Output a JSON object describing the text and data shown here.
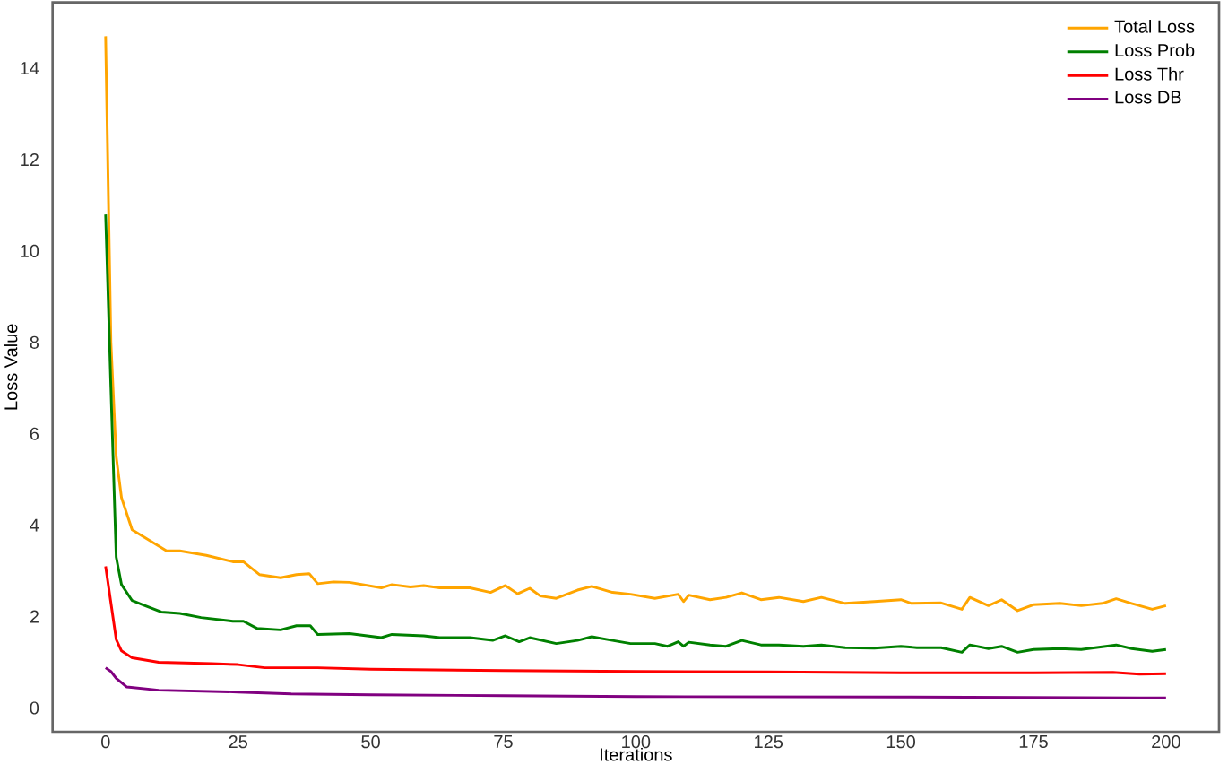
{
  "chart_data": {
    "type": "line",
    "xlabel": "Iterations",
    "ylabel": "Loss Value",
    "xlim": [
      -10,
      210
    ],
    "ylim": [
      -0.52,
      15.44
    ],
    "xticks": [
      0,
      25,
      50,
      75,
      100,
      125,
      150,
      175,
      200
    ],
    "yticks": [
      0,
      2,
      4,
      6,
      8,
      10,
      12,
      14
    ],
    "grid": false,
    "legend": "top right",
    "marker": "none",
    "line_style": "solid",
    "series": [
      {
        "name": "Total Loss",
        "color": "#ffa500",
        "x": [
          0,
          1,
          2,
          3,
          5,
          7,
          11.5,
          14,
          19,
          24,
          26,
          29,
          33,
          36,
          38.4,
          40,
          43,
          46,
          52,
          54,
          57.5,
          60,
          63,
          68.7,
          72.6,
          75.4,
          77.7,
          80,
          82,
          85,
          89,
          91.7,
          95.6,
          99,
          103.6,
          108,
          109,
          110,
          114,
          117,
          120,
          123.6,
          127,
          131.6,
          135,
          139.5,
          145,
          150,
          152,
          157.6,
          161.5,
          163,
          166.5,
          169,
          172,
          175,
          180,
          184,
          188,
          190.6,
          193.5,
          197.4,
          200
        ],
        "values": [
          14.7,
          8.0,
          5.5,
          4.6,
          3.9,
          3.76,
          3.44,
          3.44,
          3.34,
          3.2,
          3.2,
          2.92,
          2.85,
          2.92,
          2.94,
          2.72,
          2.76,
          2.75,
          2.63,
          2.7,
          2.65,
          2.68,
          2.63,
          2.63,
          2.53,
          2.68,
          2.5,
          2.62,
          2.45,
          2.4,
          2.58,
          2.66,
          2.53,
          2.49,
          2.4,
          2.49,
          2.33,
          2.47,
          2.37,
          2.42,
          2.52,
          2.37,
          2.42,
          2.33,
          2.42,
          2.29,
          2.33,
          2.37,
          2.29,
          2.3,
          2.16,
          2.42,
          2.24,
          2.37,
          2.13,
          2.26,
          2.29,
          2.24,
          2.29,
          2.39,
          2.29,
          2.16,
          2.24
        ]
      },
      {
        "name": "Loss Prob",
        "color": "#008000",
        "x": [
          0,
          1,
          2,
          3,
          5,
          7,
          10.5,
          14,
          18,
          24,
          26,
          28.6,
          33,
          36,
          38.6,
          40,
          46,
          52,
          54,
          60,
          63,
          68.7,
          73,
          75.4,
          78,
          80,
          85,
          89,
          91.7,
          95.6,
          99,
          103.6,
          106,
          108,
          109,
          110,
          114,
          117,
          120,
          123.6,
          127,
          131.6,
          135,
          139.5,
          145,
          150,
          153,
          157.6,
          161.5,
          163,
          166.5,
          169,
          172,
          175,
          180,
          184,
          190.6,
          193.5,
          197.4,
          200
        ],
        "values": [
          10.8,
          7.0,
          3.3,
          2.7,
          2.35,
          2.26,
          2.1,
          2.07,
          1.98,
          1.9,
          1.9,
          1.74,
          1.71,
          1.8,
          1.8,
          1.61,
          1.63,
          1.54,
          1.61,
          1.58,
          1.54,
          1.54,
          1.48,
          1.58,
          1.45,
          1.54,
          1.41,
          1.48,
          1.56,
          1.48,
          1.41,
          1.41,
          1.35,
          1.45,
          1.35,
          1.44,
          1.38,
          1.35,
          1.48,
          1.38,
          1.38,
          1.35,
          1.38,
          1.32,
          1.31,
          1.35,
          1.32,
          1.32,
          1.22,
          1.38,
          1.3,
          1.35,
          1.22,
          1.28,
          1.3,
          1.28,
          1.38,
          1.3,
          1.24,
          1.28
        ]
      },
      {
        "name": "Loss Thr",
        "color": "#ff0000",
        "x": [
          0,
          1,
          2,
          3,
          5,
          10,
          20,
          25,
          30,
          40,
          50,
          75,
          100,
          125,
          150,
          175,
          190,
          195,
          200
        ],
        "values": [
          3.1,
          2.3,
          1.5,
          1.25,
          1.1,
          1.0,
          0.97,
          0.95,
          0.88,
          0.88,
          0.85,
          0.82,
          0.8,
          0.79,
          0.77,
          0.77,
          0.78,
          0.74,
          0.75
        ]
      },
      {
        "name": "Loss DB",
        "color": "#800080",
        "x": [
          0,
          1,
          2,
          4,
          10,
          25,
          35,
          50,
          75,
          100,
          150,
          200
        ],
        "values": [
          0.88,
          0.8,
          0.65,
          0.46,
          0.39,
          0.35,
          0.31,
          0.29,
          0.27,
          0.25,
          0.24,
          0.22
        ]
      }
    ]
  }
}
